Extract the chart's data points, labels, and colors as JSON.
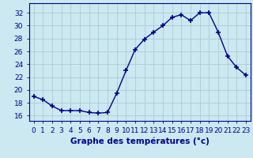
{
  "hours": [
    0,
    1,
    2,
    3,
    4,
    5,
    6,
    7,
    8,
    9,
    10,
    11,
    12,
    13,
    14,
    15,
    16,
    17,
    18,
    19,
    20,
    21,
    22,
    23
  ],
  "temps": [
    19.0,
    18.5,
    17.5,
    16.8,
    16.8,
    16.8,
    16.5,
    16.4,
    16.5,
    19.5,
    23.0,
    26.3,
    27.9,
    29.0,
    30.0,
    31.3,
    31.7,
    30.8,
    32.0,
    32.0,
    29.0,
    25.3,
    23.5,
    22.3
  ],
  "line_color": "#00008b",
  "marker": "+",
  "marker_size": 5,
  "bg_color": "#cce8f0",
  "grid_color": "#aaccd8",
  "xlabel": "Graphe des températures (°c)",
  "xlabel_color": "#00008b",
  "xlabel_fontsize": 7.5,
  "tick_label_color": "#00008b",
  "tick_fontsize": 6.5,
  "yticks": [
    16,
    18,
    20,
    22,
    24,
    26,
    28,
    30,
    32
  ],
  "ylim": [
    15.2,
    33.5
  ],
  "xlim": [
    -0.5,
    23.5
  ],
  "axis_color": "#00008b",
  "bottom_bar_color": "#cce8f0"
}
